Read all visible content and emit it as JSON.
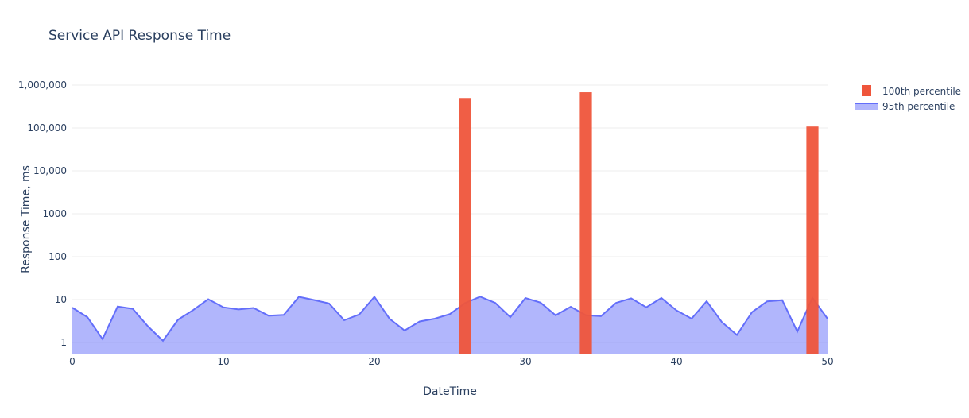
{
  "chart_data": {
    "type": "bar",
    "title": "Service API Response Time",
    "xlabel": "DateTime",
    "ylabel": "Response Time, ms",
    "xlim": [
      0,
      50
    ],
    "y_scale": "log",
    "ylim": [
      1,
      1000000
    ],
    "x_ticks": [
      0,
      10,
      20,
      30,
      40,
      50
    ],
    "x_tick_labels": [
      "0",
      "10",
      "20",
      "30",
      "40",
      "50"
    ],
    "y_ticks": [
      1,
      10,
      100,
      1000,
      10000,
      100000,
      1000000
    ],
    "y_tick_labels": [
      "1",
      "10",
      "100",
      "1000",
      "10,000",
      "100,000",
      "1,000,000"
    ],
    "grid": true,
    "legend_position": "top-right",
    "series": [
      {
        "name": "100th percentile",
        "type": "bar",
        "color": "#ef553b",
        "x": [
          26,
          34,
          49
        ],
        "values": [
          500000,
          680000,
          108000
        ]
      },
      {
        "name": "95th percentile",
        "type": "area",
        "color": "#636efa",
        "x": [
          0,
          1,
          2,
          3,
          4,
          5,
          6,
          7,
          8,
          9,
          10,
          11,
          12,
          13,
          14,
          15,
          16,
          17,
          18,
          19,
          20,
          21,
          22,
          23,
          24,
          25,
          26,
          27,
          28,
          29,
          30,
          31,
          32,
          33,
          34,
          35,
          36,
          37,
          38,
          39,
          40,
          41,
          42,
          43,
          44,
          45,
          46,
          47,
          48,
          49,
          50
        ],
        "values": [
          6.5,
          3.9,
          1.2,
          6.9,
          6.1,
          2.4,
          1.1,
          3.4,
          5.7,
          10.2,
          6.6,
          5.9,
          6.4,
          4.2,
          4.4,
          11.6,
          9.8,
          8.1,
          3.3,
          4.5,
          11.6,
          3.6,
          1.9,
          3.1,
          3.6,
          4.6,
          8.3,
          11.7,
          8.4,
          3.9,
          10.9,
          8.5,
          4.3,
          6.8,
          4.3,
          4.1,
          8.4,
          10.7,
          6.6,
          10.9,
          5.6,
          3.6,
          9.2,
          3.0,
          1.5,
          5.1,
          9.1,
          9.7,
          1.8,
          11.0,
          3.6
        ]
      }
    ]
  }
}
